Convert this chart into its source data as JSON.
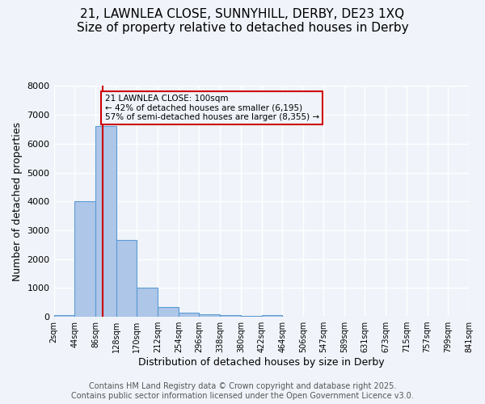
{
  "title_line1": "21, LAWNLEA CLOSE, SUNNYHILL, DERBY, DE23 1XQ",
  "title_line2": "Size of property relative to detached houses in Derby",
  "xlabel": "Distribution of detached houses by size in Derby",
  "ylabel": "Number of detached properties",
  "bins": [
    2,
    44,
    86,
    128,
    170,
    212,
    254,
    296,
    338,
    380,
    422,
    464,
    506,
    547,
    589,
    631,
    673,
    715,
    757,
    799,
    841
  ],
  "counts": [
    50,
    4000,
    6600,
    2650,
    1000,
    350,
    130,
    80,
    50,
    30,
    60,
    0,
    0,
    0,
    0,
    0,
    0,
    0,
    0,
    0
  ],
  "bar_color": "#aec6e8",
  "bar_edge_color": "#5b9bd5",
  "property_size": 100,
  "vline_color": "#cc0000",
  "annotation_text": "21 LAWNLEA CLOSE: 100sqm\n← 42% of detached houses are smaller (6,195)\n57% of semi-detached houses are larger (8,355) →",
  "annotation_box_color": "#cc0000",
  "annotation_text_color": "#000000",
  "ylim": [
    0,
    8000
  ],
  "yticks": [
    0,
    1000,
    2000,
    3000,
    4000,
    5000,
    6000,
    7000,
    8000
  ],
  "footer_line1": "Contains HM Land Registry data © Crown copyright and database right 2025.",
  "footer_line2": "Contains public sector information licensed under the Open Government Licence v3.0.",
  "background_color": "#f0f4fa",
  "grid_color": "#ffffff",
  "title_fontsize": 11,
  "axis_label_fontsize": 9,
  "tick_fontsize": 8,
  "footer_fontsize": 7
}
